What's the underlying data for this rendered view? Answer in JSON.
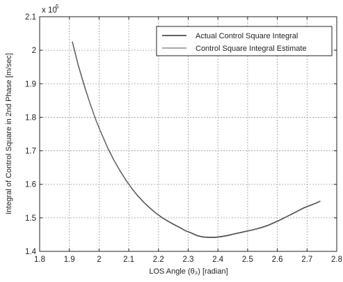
{
  "chart_data": {
    "type": "line",
    "xlabel": "LOS Angle (θ₃) [radian]",
    "ylabel": "Integral of Control Square in 2nd Phase [m/sec]",
    "y_exponent_label": "x 10",
    "y_exponent_power": "5",
    "xlim": [
      1.8,
      2.8
    ],
    "ylim": [
      1.4,
      2.1
    ],
    "x_ticks": [
      "1.8",
      "1.9",
      "2",
      "2.1",
      "2.2",
      "2.3",
      "2.4",
      "2.5",
      "2.6",
      "2.7",
      "2.8"
    ],
    "y_ticks": [
      "1.4",
      "1.5",
      "1.6",
      "1.7",
      "1.8",
      "1.9",
      "2",
      "2.1"
    ],
    "grid": true,
    "legend_position": "top-right",
    "series": [
      {
        "name": "Actual Control Square Integral",
        "color": "#000000",
        "x": [
          1.91,
          1.93,
          1.95,
          1.97,
          1.99,
          2.01,
          2.03,
          2.05,
          2.07,
          2.09,
          2.11,
          2.13,
          2.15,
          2.17,
          2.19,
          2.21,
          2.23,
          2.25,
          2.27,
          2.29,
          2.31,
          2.33,
          2.35,
          2.37,
          2.39,
          2.41,
          2.43,
          2.45,
          2.47,
          2.49,
          2.51,
          2.53,
          2.55,
          2.57,
          2.59,
          2.61,
          2.63,
          2.65,
          2.67,
          2.69,
          2.71,
          2.73,
          2.745
        ],
        "y": [
          2.025,
          1.955,
          1.895,
          1.84,
          1.79,
          1.747,
          1.707,
          1.672,
          1.641,
          1.613,
          1.588,
          1.566,
          1.547,
          1.53,
          1.515,
          1.502,
          1.491,
          1.481,
          1.472,
          1.462,
          1.455,
          1.447,
          1.443,
          1.442,
          1.442,
          1.444,
          1.447,
          1.451,
          1.455,
          1.459,
          1.463,
          1.467,
          1.472,
          1.478,
          1.486,
          1.494,
          1.503,
          1.512,
          1.521,
          1.53,
          1.537,
          1.544,
          1.55
        ]
      },
      {
        "name": "Control Square Integral Estimate",
        "color": "#777777",
        "x": [
          1.91,
          1.93,
          1.95,
          1.97,
          1.99,
          2.01,
          2.03,
          2.05,
          2.07,
          2.09,
          2.11,
          2.13,
          2.15,
          2.17,
          2.19,
          2.21,
          2.23,
          2.25,
          2.27,
          2.29,
          2.31,
          2.33,
          2.35,
          2.37,
          2.39,
          2.41,
          2.43,
          2.45,
          2.47,
          2.49,
          2.51,
          2.53,
          2.55,
          2.57,
          2.59,
          2.61,
          2.63,
          2.65,
          2.67,
          2.69,
          2.71,
          2.73,
          2.745
        ],
        "y": [
          2.023,
          1.953,
          1.893,
          1.839,
          1.789,
          1.746,
          1.706,
          1.671,
          1.64,
          1.612,
          1.587,
          1.565,
          1.546,
          1.529,
          1.514,
          1.501,
          1.49,
          1.48,
          1.471,
          1.461,
          1.454,
          1.446,
          1.442,
          1.441,
          1.441,
          1.443,
          1.446,
          1.45,
          1.454,
          1.458,
          1.462,
          1.466,
          1.471,
          1.477,
          1.485,
          1.493,
          1.502,
          1.511,
          1.52,
          1.529,
          1.536,
          1.543,
          1.549
        ]
      }
    ]
  }
}
